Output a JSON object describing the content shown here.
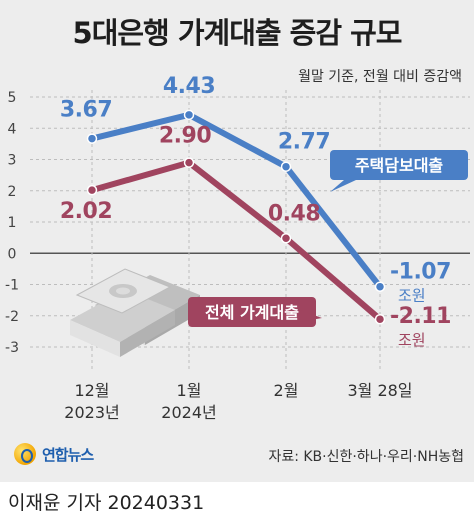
{
  "title": "5대은행 가계대출 증감 규모",
  "subtitle": "월말 기준, 전월 대비 증감액",
  "chart_data": {
    "type": "line",
    "title": "5대은행 가계대출 증감 규모",
    "subtitle": "월말 기준, 전월 대비 증감액",
    "categories": [
      {
        "line1": "12월",
        "line2": "2023년"
      },
      {
        "line1": "1월",
        "line2": "2024년"
      },
      {
        "line1": "2월",
        "line2": ""
      },
      {
        "line1": "3월 28일",
        "line2": ""
      }
    ],
    "ylim": [
      -3,
      5
    ],
    "yticks": [
      5,
      4,
      3,
      2,
      1,
      0,
      -1,
      -2,
      -3
    ],
    "grid": true,
    "series": [
      {
        "name": "주택담보대출",
        "values": [
          3.67,
          4.43,
          2.77,
          -1.07
        ],
        "labels": [
          "3.67",
          "4.43",
          "2.77",
          "-1.07"
        ],
        "unit": "조원",
        "color": "#4a7fc6"
      },
      {
        "name": "전체 가계대출",
        "values": [
          2.02,
          2.9,
          0.48,
          -2.11
        ],
        "labels": [
          "2.02",
          "2.90",
          "0.48",
          "-2.11"
        ],
        "unit": "조원",
        "color": "#a0445f"
      }
    ]
  },
  "logo": "연합뉴스",
  "source": "자료: KB·신한·하나·우리·NH농협",
  "credit": "이재윤 기자  20240331"
}
